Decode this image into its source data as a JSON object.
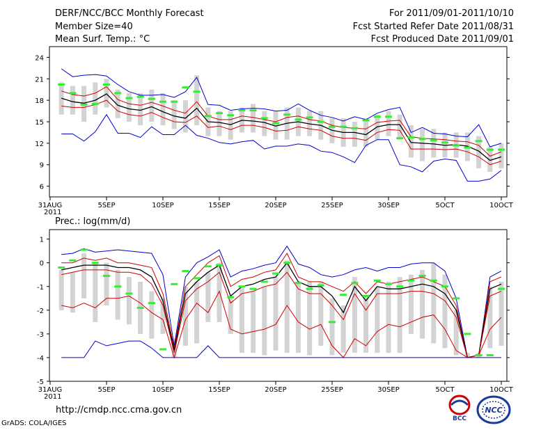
{
  "header": {
    "title": "DERF/NCC/BCC Monthly Forecast",
    "member": "Member Size=40",
    "variable": "Mean Surf. Temp.: °C",
    "period": "For 2011/09/01-2011/10/10",
    "started": "Fcst Started Refer Date 2011/08/31",
    "produced": "Fcst Produced Date 2011/09/01"
  },
  "footer": {
    "url": "http://cmdp.ncc.cma.gov.cn",
    "credit": "GrADS: COLA/IGES",
    "logo1_text": "BCC",
    "logo2_text": "NCC"
  },
  "colors": {
    "envelope": "#0000cc",
    "percentile": "#cc0000",
    "mean": "#000000",
    "box": "#d3d3d3",
    "observed": "#33ee33"
  },
  "chart_data": [
    {
      "type": "line",
      "title": "Mean Surf. Temp.: °C",
      "xlabel": "",
      "ylabel": "",
      "ylim": [
        4.5,
        25.5
      ],
      "yticks": [
        6,
        9,
        12,
        15,
        18,
        21,
        24
      ],
      "x_tick_days": [
        0,
        5,
        10,
        15,
        20,
        25,
        30,
        35,
        40
      ],
      "x_tick_labels": [
        "31AUG",
        "5SEP",
        "10SEP",
        "15SEP",
        "20SEP",
        "25SEP",
        "30SEP",
        "5OCT",
        "10OCT"
      ],
      "x_sublabel": "2011",
      "days": [
        1,
        2,
        3,
        4,
        5,
        6,
        7,
        8,
        9,
        10,
        11,
        12,
        13,
        14,
        15,
        16,
        17,
        18,
        19,
        20,
        21,
        22,
        23,
        24,
        25,
        26,
        27,
        28,
        29,
        30,
        31,
        32,
        33,
        34,
        35,
        36,
        37,
        38,
        39,
        40
      ],
      "series": [
        {
          "name": "max",
          "values": [
            22.4,
            21.3,
            21.5,
            21.6,
            21.4,
            20.2,
            19.2,
            18.7,
            18.7,
            18.8,
            18.4,
            19.2,
            21.2,
            17.4,
            17.3,
            16.6,
            16.8,
            16.9,
            16.8,
            16.5,
            16.6,
            17.5,
            16.6,
            15.9,
            15.6,
            15.1,
            15.7,
            15.3,
            16.2,
            16.7,
            17.0,
            13.5,
            14.2,
            13.4,
            13.3,
            13.0,
            12.9,
            14.6,
            11.5,
            12.0
          ]
        },
        {
          "name": "upper",
          "values": [
            19.3,
            18.8,
            18.6,
            19.0,
            19.9,
            18.1,
            17.5,
            17.3,
            17.7,
            17.2,
            16.6,
            16.2,
            17.8,
            15.8,
            15.3,
            15.3,
            15.8,
            15.6,
            15.3,
            15.0,
            15.6,
            15.8,
            15.3,
            15.1,
            14.5,
            14.2,
            14.1,
            14.0,
            14.9,
            15.1,
            15.2,
            12.9,
            12.7,
            12.6,
            12.5,
            12.3,
            12.2,
            11.7,
            10.2,
            10.8
          ]
        },
        {
          "name": "mean",
          "values": [
            18.3,
            17.8,
            17.6,
            18.0,
            18.9,
            17.3,
            16.8,
            16.6,
            17.1,
            16.4,
            15.8,
            15.5,
            16.9,
            15.0,
            14.9,
            14.6,
            15.2,
            15.1,
            14.9,
            14.4,
            14.8,
            15.0,
            14.7,
            14.5,
            13.8,
            13.5,
            13.5,
            13.2,
            14.3,
            14.6,
            14.6,
            12.1,
            12.0,
            11.9,
            11.7,
            11.8,
            11.6,
            10.9,
            9.6,
            10.1
          ]
        },
        {
          "name": "lower",
          "values": [
            17.2,
            17.0,
            17.0,
            17.4,
            18.0,
            16.5,
            16.0,
            15.8,
            16.3,
            15.6,
            15.0,
            14.9,
            15.8,
            14.2,
            14.4,
            13.9,
            14.5,
            14.5,
            14.2,
            13.7,
            13.8,
            14.3,
            14.0,
            13.8,
            13.0,
            12.7,
            12.7,
            12.4,
            13.5,
            13.9,
            13.8,
            11.2,
            11.2,
            11.2,
            11.1,
            11.2,
            10.8,
            10.1,
            9.0,
            9.5
          ]
        },
        {
          "name": "min",
          "values": [
            13.3,
            13.3,
            12.3,
            13.6,
            16.0,
            13.4,
            13.4,
            12.8,
            14.3,
            13.2,
            13.2,
            14.5,
            13.1,
            12.7,
            12.1,
            11.9,
            12.2,
            12.4,
            11.2,
            11.6,
            11.6,
            11.9,
            11.7,
            10.9,
            10.7,
            10.1,
            9.3,
            11.7,
            12.5,
            12.5,
            9.0,
            8.7,
            8.0,
            9.5,
            9.8,
            9.6,
            6.7,
            6.7,
            7.0,
            8.2
          ]
        },
        {
          "name": "box_top",
          "values": [
            20.5,
            20.0,
            20.0,
            20.5,
            21.0,
            19.5,
            19.0,
            19.0,
            19.5,
            19.0,
            18.0,
            18.0,
            21.5,
            17.0,
            16.5,
            16.5,
            17.0,
            17.5,
            16.5,
            16.5,
            17.0,
            17.0,
            16.5,
            16.5,
            15.5,
            15.5,
            15.0,
            15.5,
            16.0,
            16.5,
            16.0,
            14.5,
            14.0,
            14.0,
            13.5,
            13.5,
            13.5,
            13.0,
            11.5,
            12.0
          ]
        },
        {
          "name": "box_bottom",
          "values": [
            16.0,
            16.0,
            15.0,
            16.0,
            17.0,
            15.5,
            15.0,
            14.5,
            15.0,
            14.5,
            14.0,
            13.5,
            14.5,
            13.0,
            13.0,
            12.5,
            13.5,
            13.5,
            13.0,
            12.5,
            12.5,
            13.0,
            13.0,
            12.5,
            12.0,
            11.5,
            11.5,
            11.5,
            12.5,
            13.0,
            12.5,
            10.0,
            9.5,
            10.0,
            10.0,
            10.0,
            9.5,
            8.5,
            8.0,
            8.5
          ]
        },
        {
          "name": "observed",
          "values": [
            20.2,
            19.0,
            17.4,
            17.5,
            20.2,
            19.0,
            18.3,
            18.5,
            18.2,
            17.8,
            17.8,
            19.8,
            19.2,
            15.8,
            16.2,
            15.9,
            16.6,
            16.6,
            15.5,
            14.8,
            16.0,
            15.3,
            15.6,
            15.0,
            14.3,
            14.3,
            14.1,
            15.2,
            15.7,
            15.7,
            12.7,
            12.8,
            12.6,
            12.4,
            12.1,
            11.7,
            11.4,
            12.3,
            11.1,
            11.1
          ]
        }
      ]
    },
    {
      "type": "line",
      "title": "Prec.: log(mm/d)",
      "xlabel": "",
      "ylabel": "",
      "ylim": [
        -5,
        1.4
      ],
      "yticks": [
        -5,
        -4,
        -3,
        -2,
        -1,
        0,
        1
      ],
      "x_tick_days": [
        0,
        5,
        10,
        15,
        20,
        25,
        30,
        35,
        40
      ],
      "x_tick_labels": [
        "31AUG",
        "5SEP",
        "10SEP",
        "15SEP",
        "20SEP",
        "25SEP",
        "30SEP",
        "5OCT",
        "10OCT"
      ],
      "x_sublabel": "2011",
      "days": [
        1,
        2,
        3,
        4,
        5,
        6,
        7,
        8,
        9,
        10,
        11,
        12,
        13,
        14,
        15,
        16,
        17,
        18,
        19,
        20,
        21,
        22,
        23,
        24,
        25,
        26,
        27,
        28,
        29,
        30,
        31,
        32,
        33,
        34,
        35,
        36,
        37,
        38,
        39,
        40
      ],
      "series": [
        {
          "name": "max",
          "values": [
            0.35,
            0.4,
            0.6,
            0.45,
            0.5,
            0.55,
            0.5,
            0.45,
            0.4,
            -0.5,
            -3.5,
            -0.6,
            0.0,
            0.25,
            0.55,
            -0.6,
            -0.35,
            -0.25,
            -0.1,
            0.0,
            0.7,
            -0.05,
            -0.2,
            -0.5,
            -0.6,
            -0.5,
            -0.3,
            -0.2,
            -0.35,
            -0.2,
            -0.2,
            -0.05,
            0.0,
            0.0,
            -0.35,
            -1.5,
            -4.0,
            -3.9,
            -0.6,
            -0.35
          ]
        },
        {
          "name": "upper",
          "values": [
            0.0,
            0.0,
            0.2,
            0.1,
            0.2,
            0.0,
            0.0,
            -0.1,
            -0.2,
            -1.3,
            -3.6,
            -1.0,
            -0.5,
            0.0,
            0.3,
            -1.0,
            -0.7,
            -0.6,
            -0.4,
            -0.3,
            0.4,
            -0.6,
            -0.8,
            -0.8,
            -1.0,
            -1.2,
            -0.8,
            -1.3,
            -0.8,
            -0.9,
            -0.8,
            -0.7,
            -0.6,
            -0.8,
            -1.0,
            -1.8,
            -4.0,
            -3.9,
            -0.8,
            -0.6
          ]
        },
        {
          "name": "mean",
          "values": [
            -0.3,
            -0.2,
            -0.1,
            -0.1,
            -0.1,
            -0.2,
            -0.2,
            -0.3,
            -0.6,
            -1.6,
            -3.7,
            -1.3,
            -0.8,
            -0.4,
            -0.1,
            -1.4,
            -1.0,
            -0.9,
            -0.7,
            -0.6,
            0.0,
            -0.8,
            -1.0,
            -1.0,
            -1.4,
            -2.1,
            -1.0,
            -1.6,
            -1.0,
            -1.1,
            -1.1,
            -1.0,
            -0.9,
            -1.0,
            -1.3,
            -2.0,
            -4.0,
            -3.9,
            -1.1,
            -0.9
          ]
        },
        {
          "name": "lower",
          "values": [
            -0.5,
            -0.4,
            -0.3,
            -0.3,
            -0.3,
            -0.4,
            -0.4,
            -0.5,
            -0.9,
            -1.8,
            -3.8,
            -1.6,
            -1.1,
            -0.8,
            -0.4,
            -1.7,
            -1.3,
            -1.2,
            -1.0,
            -0.9,
            -0.4,
            -1.1,
            -1.3,
            -1.3,
            -1.8,
            -2.4,
            -1.3,
            -2.0,
            -1.3,
            -1.3,
            -1.3,
            -1.2,
            -1.2,
            -1.3,
            -1.6,
            -2.3,
            -4.0,
            -3.9,
            -1.4,
            -1.2
          ]
        },
        {
          "name": "p10",
          "values": [
            -1.8,
            -1.9,
            -1.7,
            -1.9,
            -1.5,
            -1.5,
            -1.4,
            -1.7,
            -2.1,
            -2.4,
            -4.0,
            -2.4,
            -1.7,
            -2.1,
            -1.2,
            -2.8,
            -3.0,
            -2.9,
            -2.8,
            -2.6,
            -1.8,
            -2.5,
            -2.8,
            -2.6,
            -3.5,
            -4.0,
            -3.2,
            -3.5,
            -2.9,
            -2.6,
            -2.7,
            -2.5,
            -2.3,
            -2.2,
            -2.8,
            -3.7,
            -4.0,
            -3.9,
            -2.8,
            -2.3
          ]
        },
        {
          "name": "min",
          "values": [
            -4.0,
            -4.0,
            -4.0,
            -3.3,
            -3.5,
            -3.4,
            -3.3,
            -3.3,
            -3.6,
            -4.0,
            -4.0,
            -4.0,
            -4.0,
            -3.5,
            -4.0,
            -4.0,
            -4.0,
            -4.0,
            -4.0,
            -4.0,
            -4.0,
            -4.0,
            -4.0,
            -4.0,
            -4.0,
            -4.0,
            -4.0,
            -4.0,
            -4.0,
            -4.0,
            -4.0,
            -4.0,
            -4.0,
            -4.0,
            -4.0,
            -4.0,
            -4.0,
            -4.0,
            -4.0,
            -4.0
          ]
        },
        {
          "name": "box_top",
          "values": [
            -0.3,
            -0.4,
            0.4,
            0.0,
            0.0,
            -0.3,
            -0.6,
            -0.8,
            -1.2,
            -1.5,
            -3.2,
            -1.0,
            -0.8,
            -0.4,
            0.0,
            -1.4,
            -1.0,
            -1.2,
            -1.0,
            -0.6,
            0.1,
            -0.8,
            -0.8,
            -0.8,
            -1.5,
            -1.8,
            -0.6,
            -1.4,
            -1.0,
            -0.8,
            -0.6,
            -0.5,
            -0.3,
            0.0,
            -0.5,
            -2.0,
            -3.8,
            -3.8,
            -1.0,
            -0.8
          ]
        },
        {
          "name": "box_bottom",
          "values": [
            -2.0,
            -2.1,
            -1.5,
            -2.5,
            -1.8,
            -2.4,
            -2.6,
            -3.0,
            -3.2,
            -3.0,
            -4.0,
            -3.5,
            -3.4,
            -2.5,
            -2.5,
            -3.0,
            -3.8,
            -3.8,
            -3.9,
            -3.7,
            -3.8,
            -3.8,
            -3.9,
            -3.5,
            -3.9,
            -3.8,
            -3.8,
            -3.8,
            -3.8,
            -3.8,
            -3.8,
            -3.0,
            -3.2,
            -3.4,
            -3.6,
            -3.9,
            -4.0,
            -4.0,
            -3.6,
            -3.5
          ]
        },
        {
          "name": "observed",
          "values": [
            -0.2,
            0.1,
            0.55,
            0.0,
            -0.55,
            -1.0,
            -1.3,
            -1.9,
            -1.7,
            -3.65,
            -0.9,
            -0.35,
            -0.65,
            -0.15,
            -0.1,
            -1.45,
            -1.0,
            -1.1,
            -0.8,
            -0.45,
            0.0,
            -0.85,
            -1.1,
            -0.95,
            -2.5,
            -1.35,
            -0.85,
            -1.4,
            -0.75,
            -0.9,
            -1.0,
            -0.75,
            -0.55,
            -0.75,
            -1.0,
            -1.5,
            -3.0,
            -3.9,
            -3.9,
            -1.1
          ]
        }
      ]
    }
  ]
}
